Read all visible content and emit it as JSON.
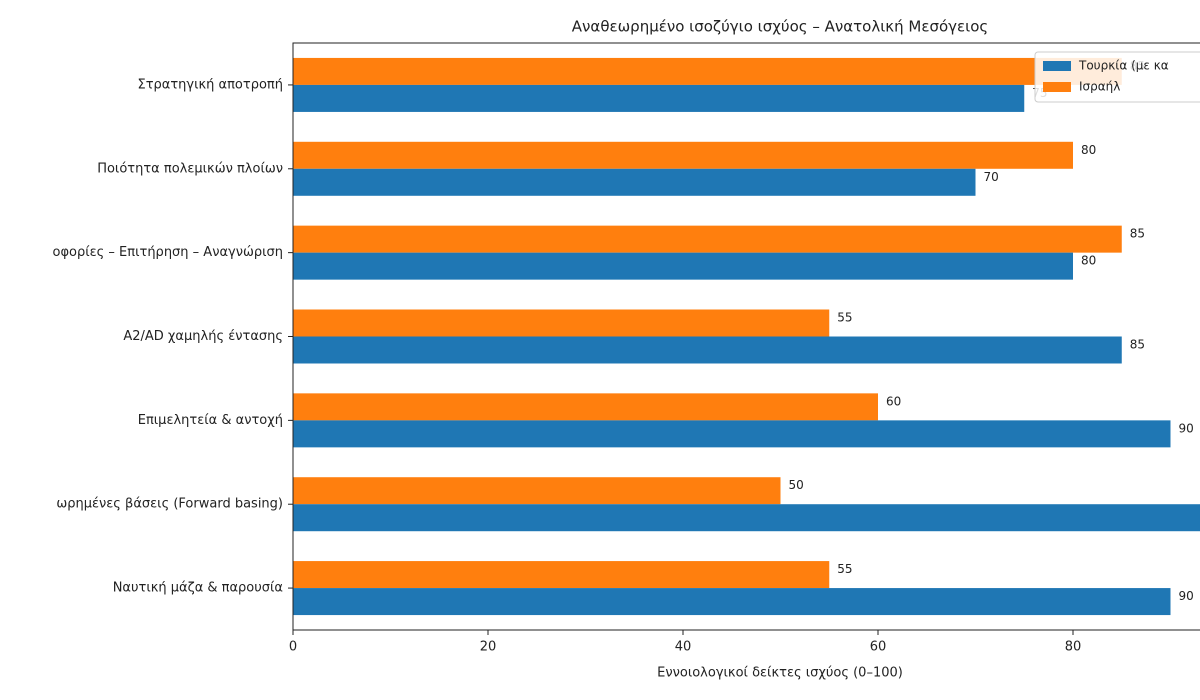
{
  "chart_data": {
    "type": "barh",
    "title": "Αναθεωρημένο ισοζύγιο ισχύος – Ανατολική Μεσόγειος",
    "xlabel": "Εννοιολογικοί δείκτες ισχύος (0–100)",
    "categories": [
      "Στρατηγική αποτροπή",
      "Ποιότητα πολεμικών πλοίων",
      "οφορίες – Επιτήρηση – Αναγνώριση",
      "A2/AD χαμηλής έντασης",
      "Επιμελητεία & αντοχή",
      "ωρημένες βάσεις (Forward basing)",
      "Ναυτική μάζα & παρουσία"
    ],
    "series": [
      {
        "name": "Τουρκία (με κα",
        "color": "#1f77b4",
        "values": [
          75,
          70,
          80,
          85,
          90,
          95,
          90
        ]
      },
      {
        "name": "Ισραήλ",
        "color": "#ff7f0e",
        "values": [
          85,
          80,
          85,
          55,
          60,
          50,
          55
        ]
      }
    ],
    "xlim": [
      0,
      100
    ],
    "xticks": [
      0,
      20,
      40,
      60,
      80
    ],
    "legend": "upper right"
  }
}
